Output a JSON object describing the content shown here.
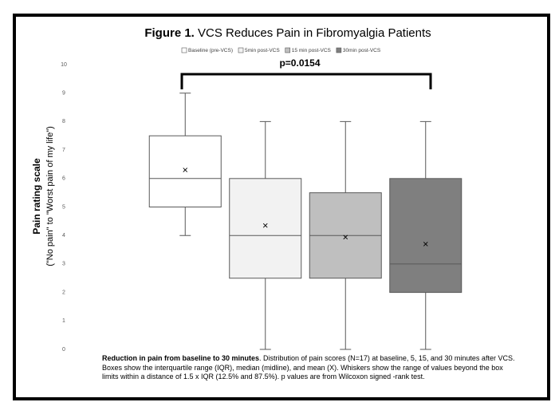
{
  "chart_data": {
    "type": "box",
    "figure_label": "Figure 1.",
    "title": "VCS Reduces Pain in Fibromyalgia Patients",
    "y_label": "Pain rating scale",
    "y_sublabel": "(\"No pain\" to \"Worst pain of my life\")",
    "ylim": [
      0,
      10
    ],
    "yticks": [
      0,
      1,
      2,
      3,
      4,
      5,
      6,
      7,
      8,
      9,
      10
    ],
    "series": [
      {
        "name": "Baseline (pre-VCS)",
        "color": "#ffffff",
        "whisker_low": 4,
        "q1": 5,
        "median": 6,
        "q3": 7.5,
        "whisker_high": 9,
        "mean": 6.3
      },
      {
        "name": "5min post-VCS",
        "color": "#f2f2f2",
        "whisker_low": 0,
        "q1": 2.5,
        "median": 4,
        "q3": 6,
        "whisker_high": 8,
        "mean": 4.35
      },
      {
        "name": "15 min post-VCS",
        "color": "#bfbfbf",
        "whisker_low": 0,
        "q1": 2.5,
        "median": 4,
        "q3": 5.5,
        "whisker_high": 8,
        "mean": 3.94
      },
      {
        "name": "30min post-VCS",
        "color": "#7f7f7f",
        "whisker_low": 0,
        "q1": 2,
        "median": 3,
        "q3": 6,
        "whisker_high": 8,
        "mean": 3.7
      }
    ],
    "annotation": "p=0.0154",
    "caption_bold": "Reduction in pain from baseline to 30 minutes",
    "caption": ". Distribution of pain scores (N=17) at baseline, 5, 15, and 30 minutes after VCS. Boxes show the interquartile range (IQR), median (midline), and mean (X). Whiskers show the range of values beyond the box limits within a distance of 1.5 x IQR (12.5% and 87.5%). p values are from Wilcoxon signed -rank test."
  }
}
